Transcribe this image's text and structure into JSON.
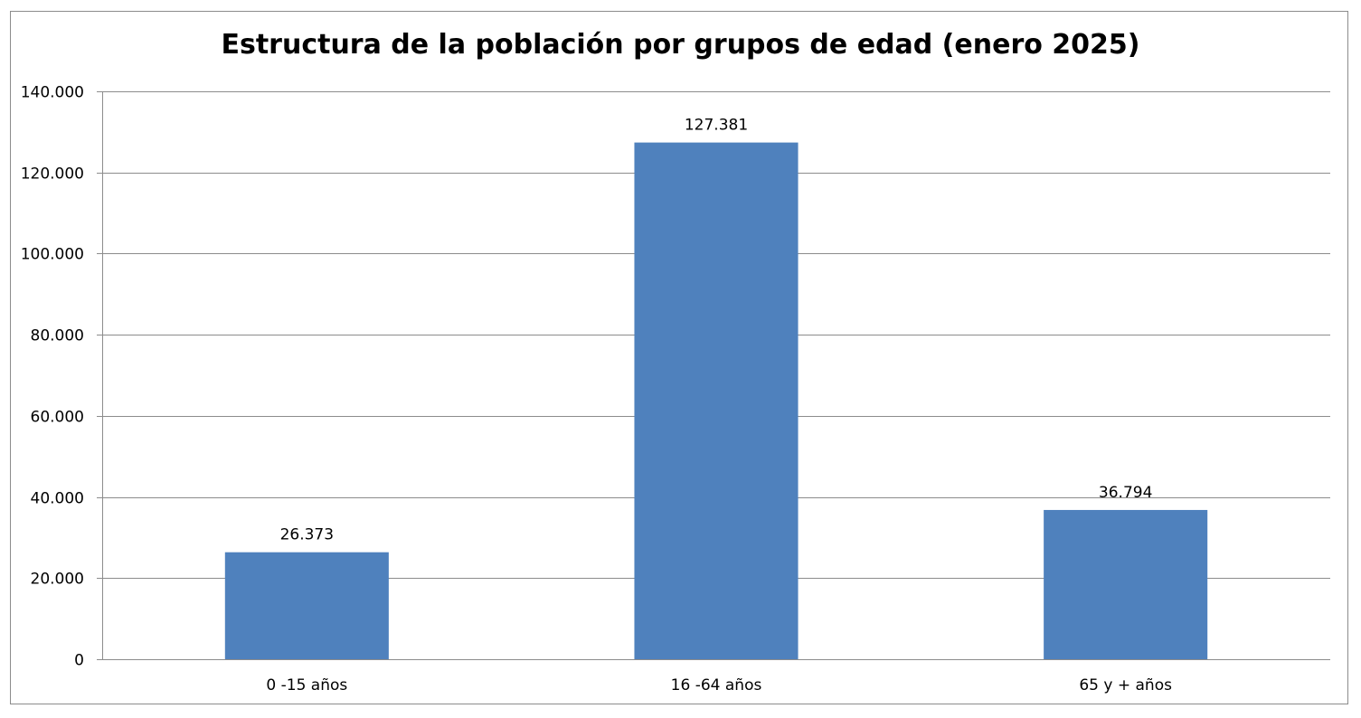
{
  "chart_data": {
    "type": "bar",
    "title": "Estructura de la población por grupos de edad (enero 2025)",
    "categories": [
      "0 -15 años",
      "16 -64 años",
      "65 y + años"
    ],
    "values": [
      26373,
      127381,
      36794
    ],
    "value_labels": [
      "26.373",
      "127.381",
      "36.794"
    ],
    "ylim": [
      0,
      140000
    ],
    "yticks": [
      0,
      20000,
      40000,
      60000,
      80000,
      100000,
      120000,
      140000
    ],
    "ytick_labels": [
      "0",
      "20.000",
      "40.000",
      "60.000",
      "80.000",
      "100.000",
      "120.000",
      "140.000"
    ],
    "xlabel": "",
    "ylabel": "",
    "grid": true,
    "legend": "none",
    "colors": {
      "bar": "#4f81bd",
      "grid": "#8c8c8c",
      "axis": "#8c8c8c"
    }
  }
}
